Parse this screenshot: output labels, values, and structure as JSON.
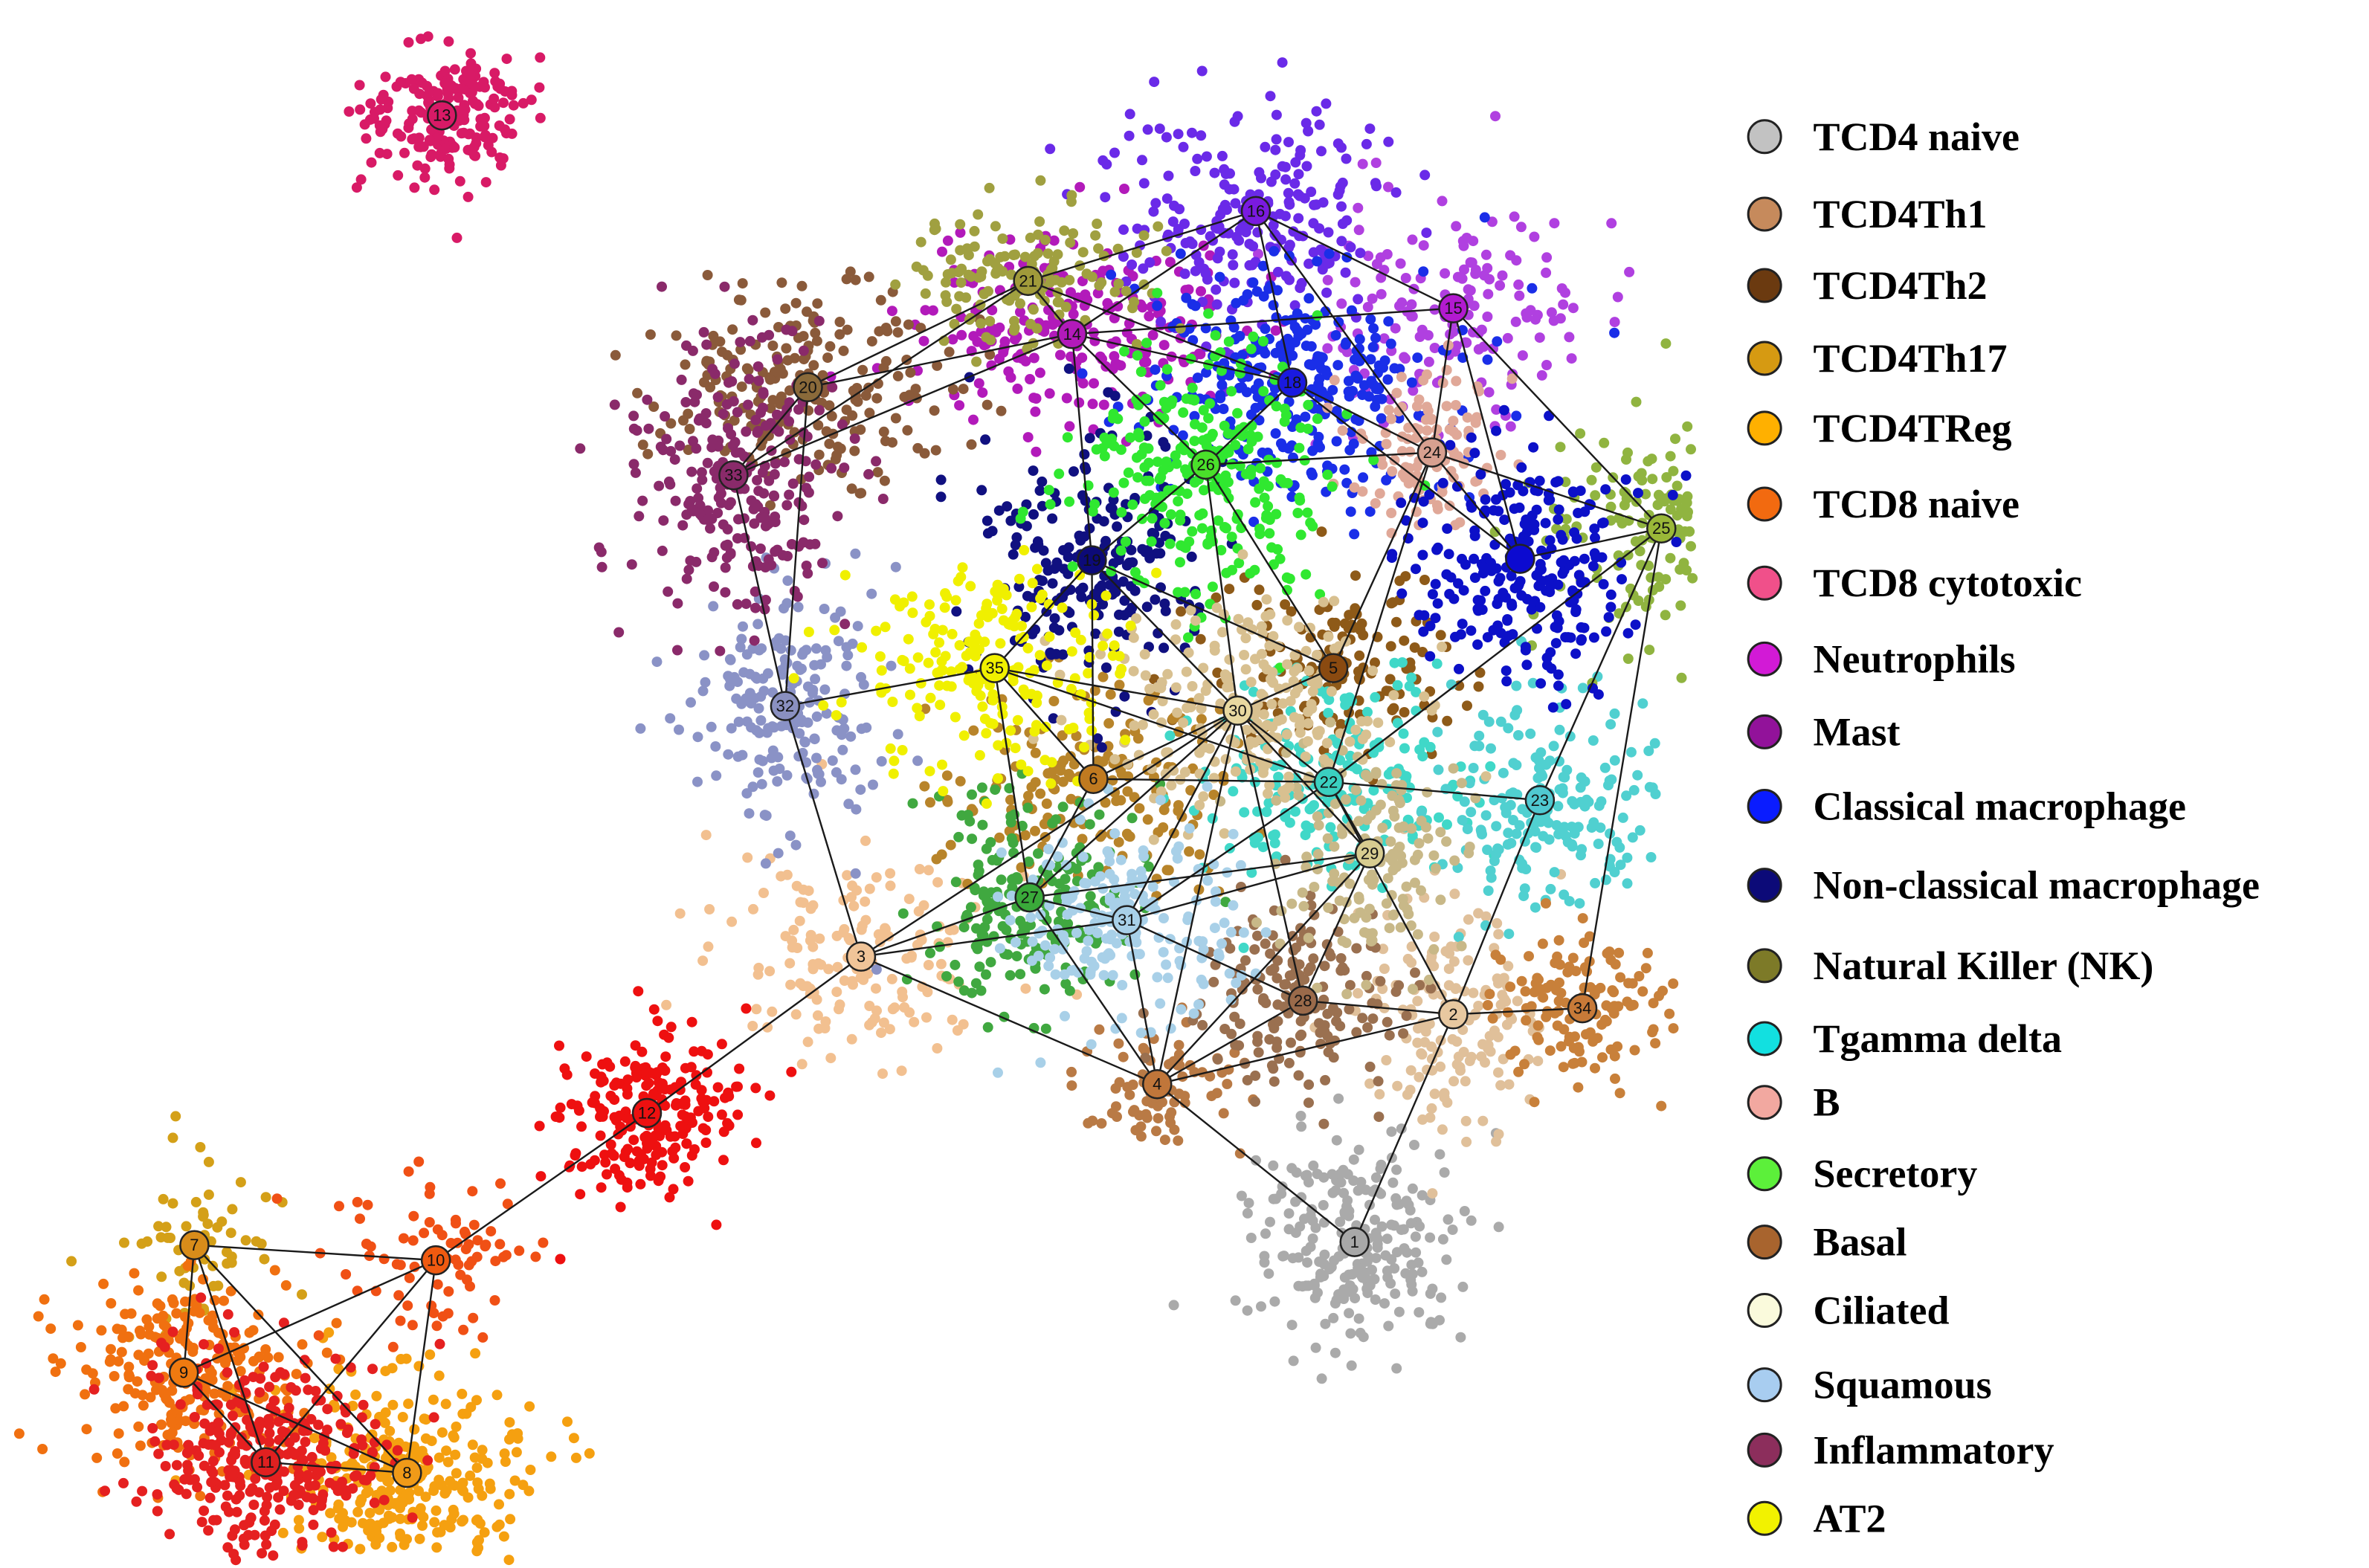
{
  "legend": [
    {
      "label": "TCD4 naive",
      "color": "#c2c2c2"
    },
    {
      "label": "TCD4Th1",
      "color": "#c68a5c"
    },
    {
      "label": "TCD4Th2",
      "color": "#6b3a10"
    },
    {
      "label": "TCD4Th17",
      "color": "#d69a12"
    },
    {
      "label": "TCD4TReg",
      "color": "#ffb000"
    },
    {
      "label": "TCD8  naive",
      "color": "#f26a10"
    },
    {
      "label": "TCD8 cytotoxic",
      "color": "#f0508a"
    },
    {
      "label": "Neutrophils",
      "color": "#d21ad6"
    },
    {
      "label": "Mast",
      "color": "#92129a"
    },
    {
      "label": "Classical macrophage",
      "color": "#0a1cff"
    },
    {
      "label": "Non-classical macrophage",
      "color": "#0c0a78"
    },
    {
      "label": "Natural Killer (NK)",
      "color": "#7d7a28"
    },
    {
      "label": "Tgamma delta",
      "color": "#12e0e0"
    },
    {
      "label": "B",
      "color": "#f2a8a0"
    },
    {
      "label": "Secretory",
      "color": "#5cf03a"
    },
    {
      "label": "Basal",
      "color": "#a8642e"
    },
    {
      "label": "Ciliated",
      "color": "#fafadc"
    },
    {
      "label": "Squamous",
      "color": "#a8cdf0"
    },
    {
      "label": "Inflammatory",
      "color": "#8c2e5c"
    },
    {
      "label": "AT2",
      "color": "#f2f200"
    }
  ],
  "nodes": [
    {
      "id": "1",
      "color": "#a8a8a8",
      "cloud": "#aaaaaa"
    },
    {
      "id": "2",
      "color": "#e8c8a0",
      "cloud": "#e0c09a"
    },
    {
      "id": "3",
      "color": "#f0c498",
      "cloud": "#f2c090"
    },
    {
      "id": "4",
      "color": "#c0763a",
      "cloud": "#b97a45"
    },
    {
      "id": "5",
      "color": "#8a4a10",
      "cloud": "#8e5a18"
    },
    {
      "id": "6",
      "color": "#c07a20",
      "cloud": "#b8842a"
    },
    {
      "id": "7",
      "color": "#d88c1a",
      "cloud": "#d4a018"
    },
    {
      "id": "8",
      "color": "#f09a18",
      "cloud": "#f5a010"
    },
    {
      "id": "9",
      "color": "#f07a10",
      "cloud": "#f07010"
    },
    {
      "id": "10",
      "color": "#f05a10",
      "cloud": "#f05015"
    },
    {
      "id": "11",
      "color": "#e02020",
      "cloud": "#e52020"
    },
    {
      "id": "12",
      "color": "#ee1010",
      "cloud": "#ee1010"
    },
    {
      "id": "13",
      "color": "#d81a66",
      "cloud": "#d81a66"
    },
    {
      "id": "14",
      "color": "#b21aba",
      "cloud": "#b21aba"
    },
    {
      "id": "15",
      "color": "#b21ad0",
      "cloud": "#b040e0"
    },
    {
      "id": "16",
      "color": "#7a1ae0",
      "cloud": "#6a2ae8"
    },
    {
      "id": "18",
      "color": "#1a1ae0",
      "cloud": "#1a2ee8"
    },
    {
      "id": "19",
      "color": "#0c0a78",
      "cloud": "#101080"
    },
    {
      "id": "20",
      "color": "#8a6a3a",
      "cloud": "#8a5a3a"
    },
    {
      "id": "21",
      "color": "#a09a3a",
      "cloud": "#a0a040"
    },
    {
      "id": "22",
      "color": "#3ad0c0",
      "cloud": "#40d8c8"
    },
    {
      "id": "23",
      "color": "#50c8d0",
      "cloud": "#50d0d0"
    },
    {
      "id": "24",
      "color": "#d8a090",
      "cloud": "#e0a898"
    },
    {
      "id": "25",
      "color": "#9ab838",
      "cloud": "#90b440"
    },
    {
      "id": "26",
      "color": "#4ae02a",
      "cloud": "#30e830"
    },
    {
      "id": "27",
      "color": "#3aaa3a",
      "cloud": "#40a840"
    },
    {
      "id": "28",
      "color": "#9a6a4a",
      "cloud": "#9a7050"
    },
    {
      "id": "29",
      "color": "#d8cc90",
      "cloud": "#c8b888"
    },
    {
      "id": "30",
      "color": "#e8d8a0",
      "cloud": "#d8c090"
    },
    {
      "id": "31",
      "color": "#a8d0e8",
      "cloud": "#a8d0e8"
    },
    {
      "id": "32",
      "color": "#8a90c0",
      "cloud": "#8a92c6"
    },
    {
      "id": "33",
      "color": "#8a2a6a",
      "cloud": "#8a2a6a"
    },
    {
      "id": "34",
      "color": "#c87a38",
      "cloud": "#c8803a"
    },
    {
      "id": "35",
      "color": "#f0f000",
      "cloud": "#f0f000"
    },
    {
      "id": "",
      "color": "#0c0ad0",
      "cloud": "#0c10c8"
    }
  ]
}
